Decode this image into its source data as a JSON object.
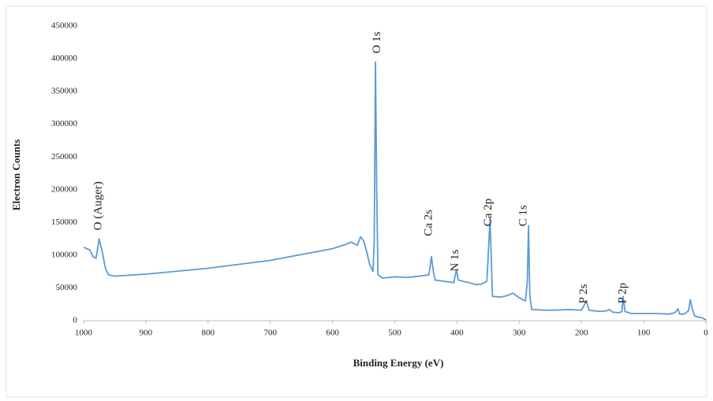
{
  "chart_data": {
    "type": "line",
    "x_label": "Binding Energy (eV)",
    "y_label": "Electron Counts",
    "color": "#5b9bd5",
    "x": [
      1000,
      990,
      985,
      980,
      975,
      970,
      965,
      960,
      950,
      900,
      800,
      700,
      600,
      580,
      570,
      560,
      555,
      550,
      545,
      540,
      535,
      533,
      531,
      529,
      527,
      520,
      500,
      480,
      460,
      445,
      441,
      438,
      435,
      420,
      405,
      401,
      398,
      390,
      380,
      370,
      360,
      352,
      350,
      347,
      345,
      343,
      330,
      320,
      310,
      300,
      290,
      287,
      285,
      283,
      280,
      260,
      240,
      220,
      200,
      192,
      188,
      170,
      160,
      155,
      150,
      140,
      135,
      133,
      130,
      120,
      100,
      80,
      60,
      50,
      45,
      42,
      35,
      28,
      25,
      22,
      18,
      10,
      5,
      0
    ],
    "values": [
      112000,
      108000,
      98000,
      95000,
      125000,
      105000,
      80000,
      70000,
      68000,
      71000,
      80000,
      92000,
      110000,
      116000,
      120000,
      115000,
      128000,
      122000,
      105000,
      85000,
      75000,
      120000,
      395000,
      200000,
      70000,
      65000,
      67000,
      66000,
      68000,
      70000,
      98000,
      75000,
      62000,
      60000,
      58000,
      78000,
      62000,
      60000,
      58000,
      55000,
      56000,
      60000,
      95000,
      155000,
      100000,
      37000,
      36000,
      38000,
      42000,
      35000,
      30000,
      60000,
      145000,
      40000,
      17000,
      16000,
      16000,
      17000,
      16000,
      30000,
      16000,
      14000,
      15000,
      17000,
      13000,
      12000,
      14000,
      37000,
      14000,
      11000,
      11000,
      11000,
      10000,
      12000,
      18000,
      10000,
      10000,
      15000,
      32000,
      18000,
      7000,
      5000,
      4000,
      1000
    ],
    "xlim": [
      1000,
      0
    ],
    "ylim": [
      0,
      450000
    ],
    "xticks": [
      1000,
      900,
      800,
      700,
      600,
      500,
      400,
      300,
      200,
      100,
      0
    ],
    "yticks": [
      0,
      50000,
      100000,
      150000,
      200000,
      250000,
      300000,
      350000,
      400000,
      450000
    ],
    "annotations": [
      {
        "text": "O (Auger)",
        "x": 976,
        "y": 138000
      },
      {
        "text": "O 1s",
        "x": 528,
        "y": 408000
      },
      {
        "text": "Ca 2s",
        "x": 445,
        "y": 129000
      },
      {
        "text": "N 1s",
        "x": 402,
        "y": 75000
      },
      {
        "text": "Ca 2p",
        "x": 349,
        "y": 144000
      },
      {
        "text": "C 1s",
        "x": 293,
        "y": 144000
      },
      {
        "text": "P 2s",
        "x": 196,
        "y": 26000
      },
      {
        "text": "P 2p",
        "x": 133,
        "y": 26000
      }
    ]
  }
}
